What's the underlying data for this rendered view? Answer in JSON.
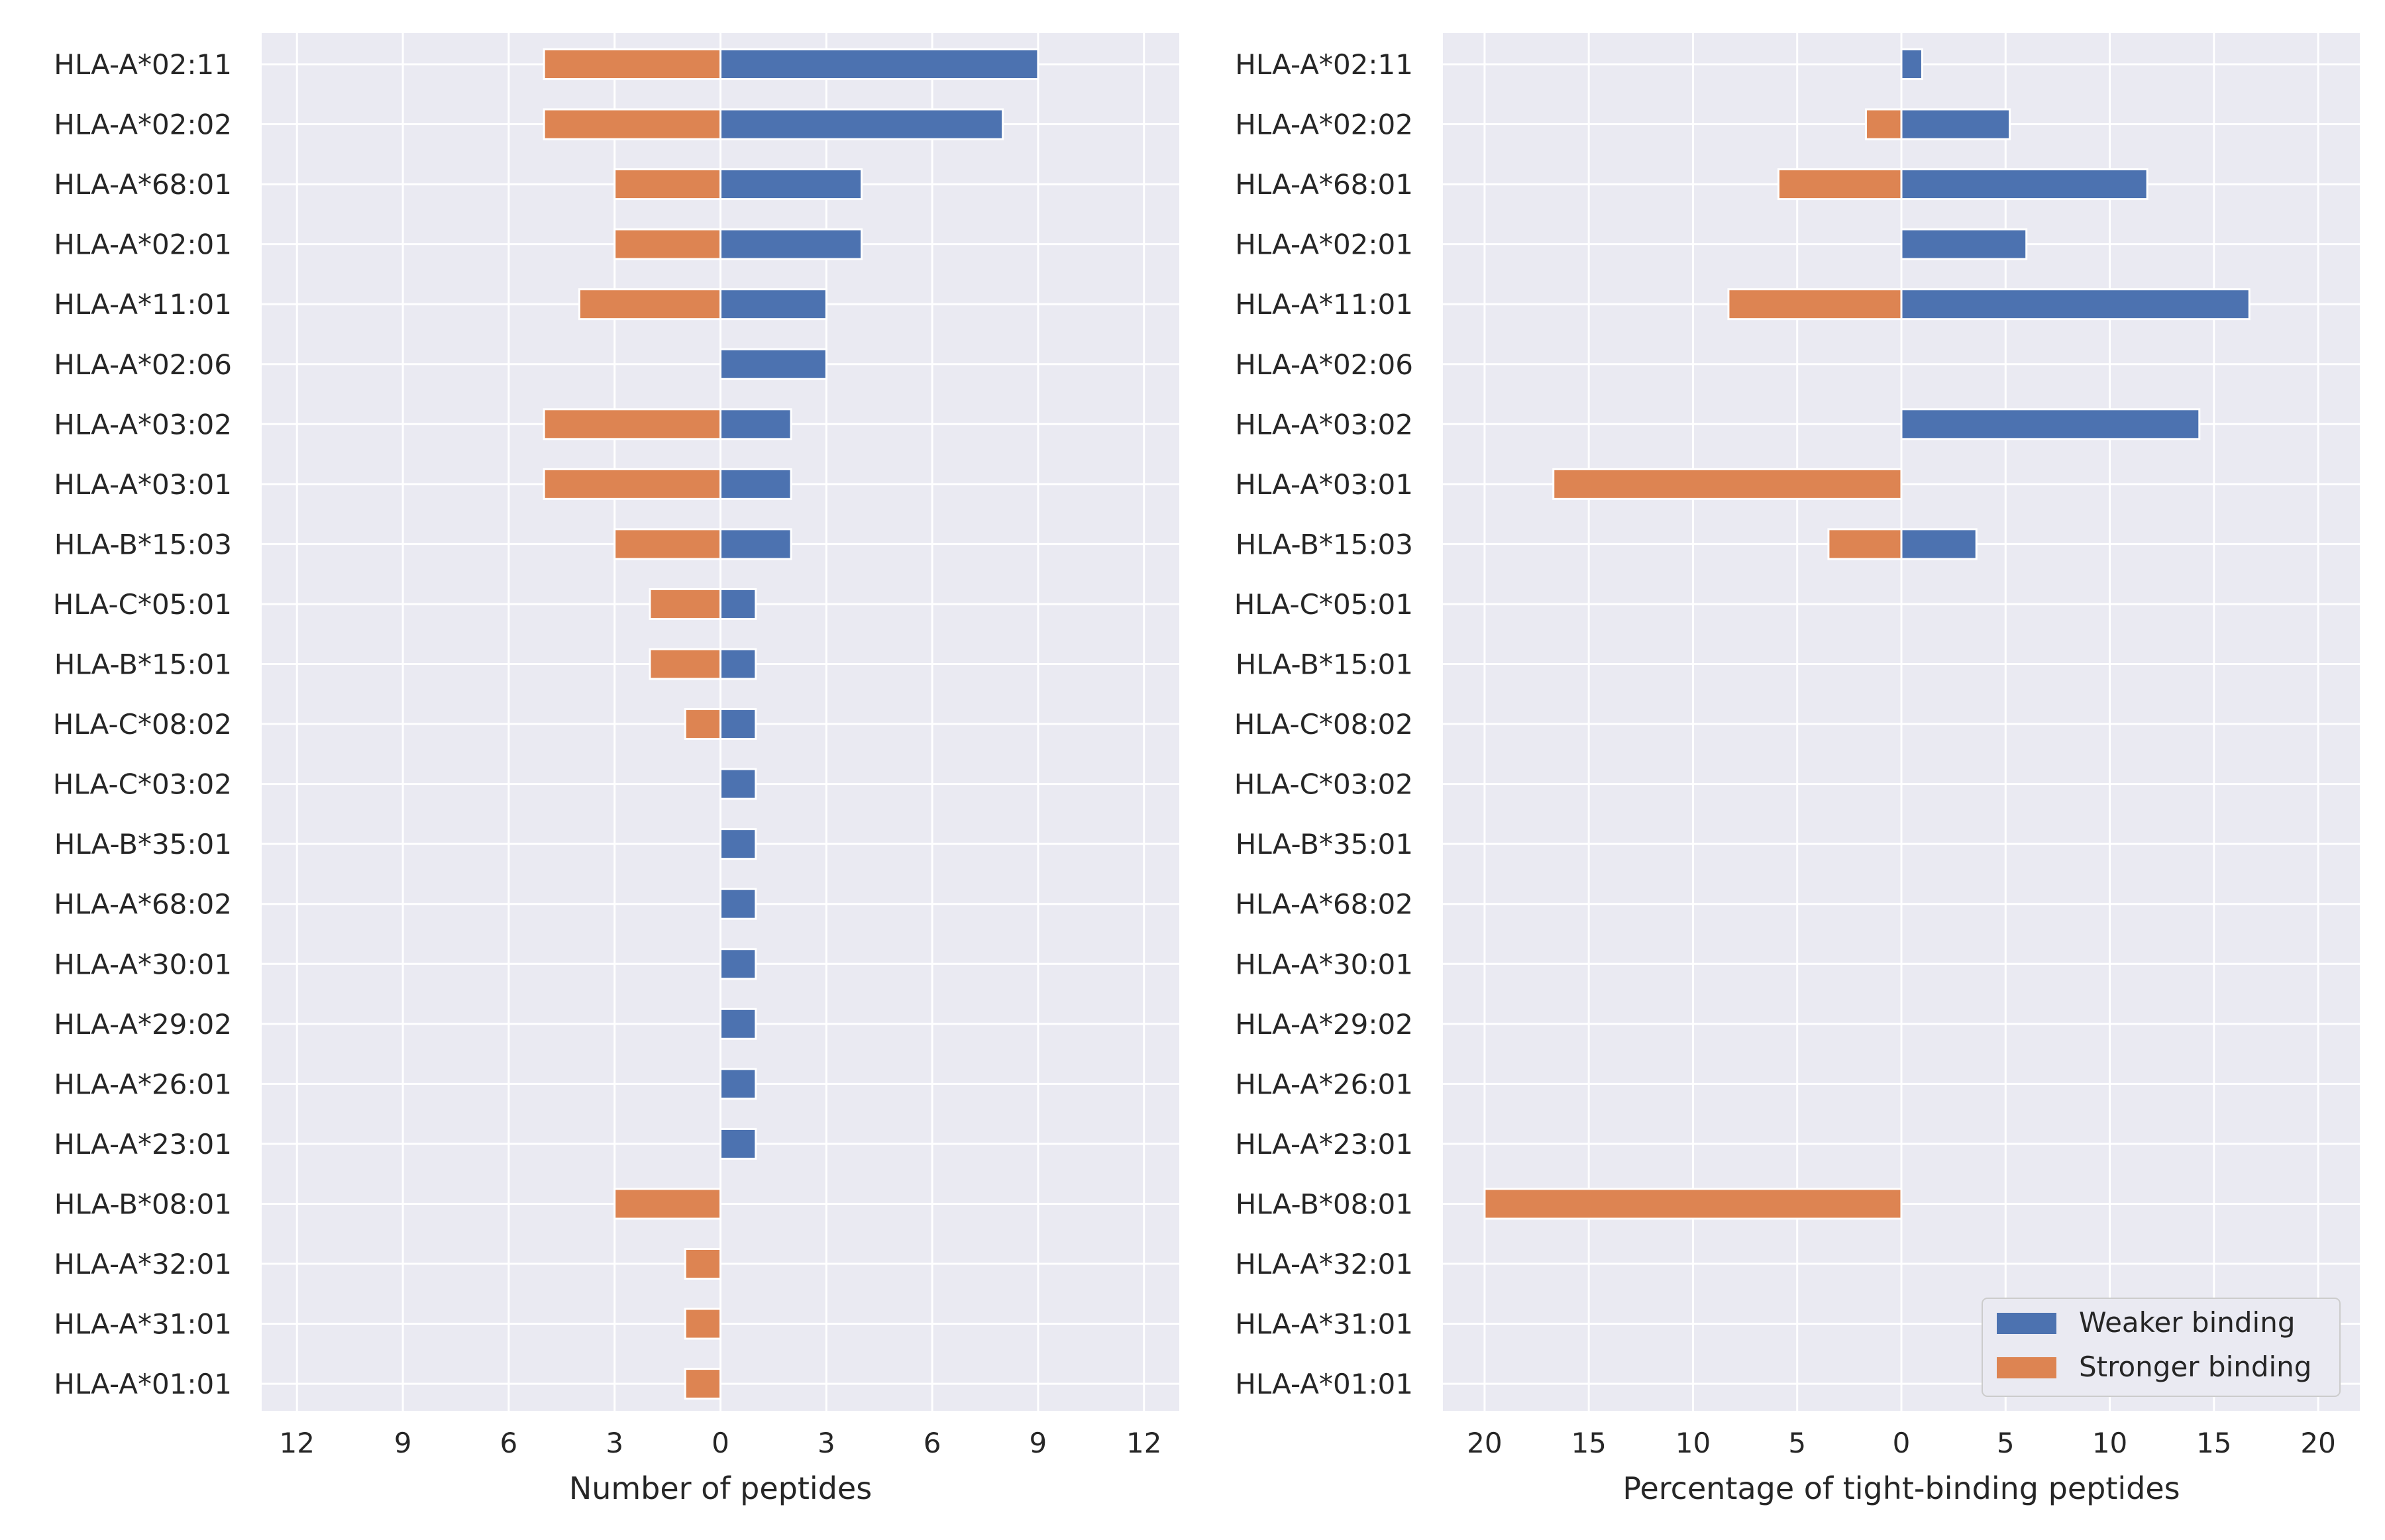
{
  "chart_data": [
    {
      "type": "bar",
      "orientation": "horizontal-diverging",
      "title": "",
      "xlabel": "Number of peptides",
      "ylabel": "",
      "xlim": [
        -13,
        13
      ],
      "xticks": [
        -12,
        -9,
        -6,
        -3,
        0,
        3,
        6,
        9,
        12
      ],
      "xtick_labels": [
        "12",
        "9",
        "6",
        "3",
        "0",
        "3",
        "6",
        "9",
        "12"
      ],
      "categories": [
        "HLA-A*02:11",
        "HLA-A*02:02",
        "HLA-A*68:01",
        "HLA-A*02:01",
        "HLA-A*11:01",
        "HLA-A*02:06",
        "HLA-A*03:02",
        "HLA-A*03:01",
        "HLA-B*15:03",
        "HLA-C*05:01",
        "HLA-B*15:01",
        "HLA-C*08:02",
        "HLA-C*03:02",
        "HLA-B*35:01",
        "HLA-A*68:02",
        "HLA-A*30:01",
        "HLA-A*29:02",
        "HLA-A*26:01",
        "HLA-A*23:01",
        "HLA-B*08:01",
        "HLA-A*32:01",
        "HLA-A*31:01",
        "HLA-A*01:01"
      ],
      "series": [
        {
          "name": "Weaker binding",
          "color": "#4c72b0",
          "direction": "right",
          "values": [
            9,
            8,
            4,
            4,
            3,
            3,
            2,
            2,
            2,
            1,
            1,
            1,
            1,
            1,
            1,
            1,
            1,
            1,
            1,
            0,
            0,
            0,
            0
          ]
        },
        {
          "name": "Stronger binding",
          "color": "#dd8452",
          "direction": "left",
          "values": [
            5,
            5,
            3,
            3,
            4,
            0,
            5,
            5,
            3,
            2,
            2,
            1,
            0,
            0,
            0,
            0,
            0,
            0,
            0,
            3,
            1,
            1,
            1
          ]
        }
      ],
      "grid": true,
      "background": "#eaeaf2"
    },
    {
      "type": "bar",
      "orientation": "horizontal-diverging",
      "title": "",
      "xlabel": "Percentage of tight-binding peptides",
      "ylabel": "",
      "xlim": [
        -22,
        22
      ],
      "xticks": [
        -20,
        -15,
        -10,
        -5,
        0,
        5,
        10,
        15,
        20
      ],
      "xtick_labels": [
        "20",
        "15",
        "10",
        "5",
        "0",
        "5",
        "10",
        "15",
        "20"
      ],
      "categories": [
        "HLA-A*02:11",
        "HLA-A*02:02",
        "HLA-A*68:01",
        "HLA-A*02:01",
        "HLA-A*11:01",
        "HLA-A*02:06",
        "HLA-A*03:02",
        "HLA-A*03:01",
        "HLA-B*15:03",
        "HLA-C*05:01",
        "HLA-B*15:01",
        "HLA-C*08:02",
        "HLA-C*03:02",
        "HLA-B*35:01",
        "HLA-A*68:02",
        "HLA-A*30:01",
        "HLA-A*29:02",
        "HLA-A*26:01",
        "HLA-A*23:01",
        "HLA-B*08:01",
        "HLA-A*32:01",
        "HLA-A*31:01",
        "HLA-A*01:01"
      ],
      "series": [
        {
          "name": "Weaker binding",
          "color": "#4c72b0",
          "direction": "right",
          "values": [
            1.0,
            5.2,
            11.8,
            6.0,
            16.7,
            0,
            14.3,
            0,
            3.6,
            0,
            0,
            0,
            0,
            0,
            0,
            0,
            0,
            0,
            0,
            0,
            0,
            0,
            0
          ]
        },
        {
          "name": "Stronger binding",
          "color": "#dd8452",
          "direction": "left",
          "values": [
            0,
            1.7,
            5.9,
            0,
            8.3,
            0,
            0,
            16.7,
            3.5,
            0,
            0,
            0,
            0,
            0,
            0,
            0,
            0,
            0,
            0,
            20.0,
            0,
            0,
            0
          ]
        }
      ],
      "grid": true,
      "background": "#eaeaf2",
      "legend": {
        "position": "bottom-right",
        "entries": [
          "Weaker binding",
          "Stronger binding"
        ]
      }
    }
  ]
}
